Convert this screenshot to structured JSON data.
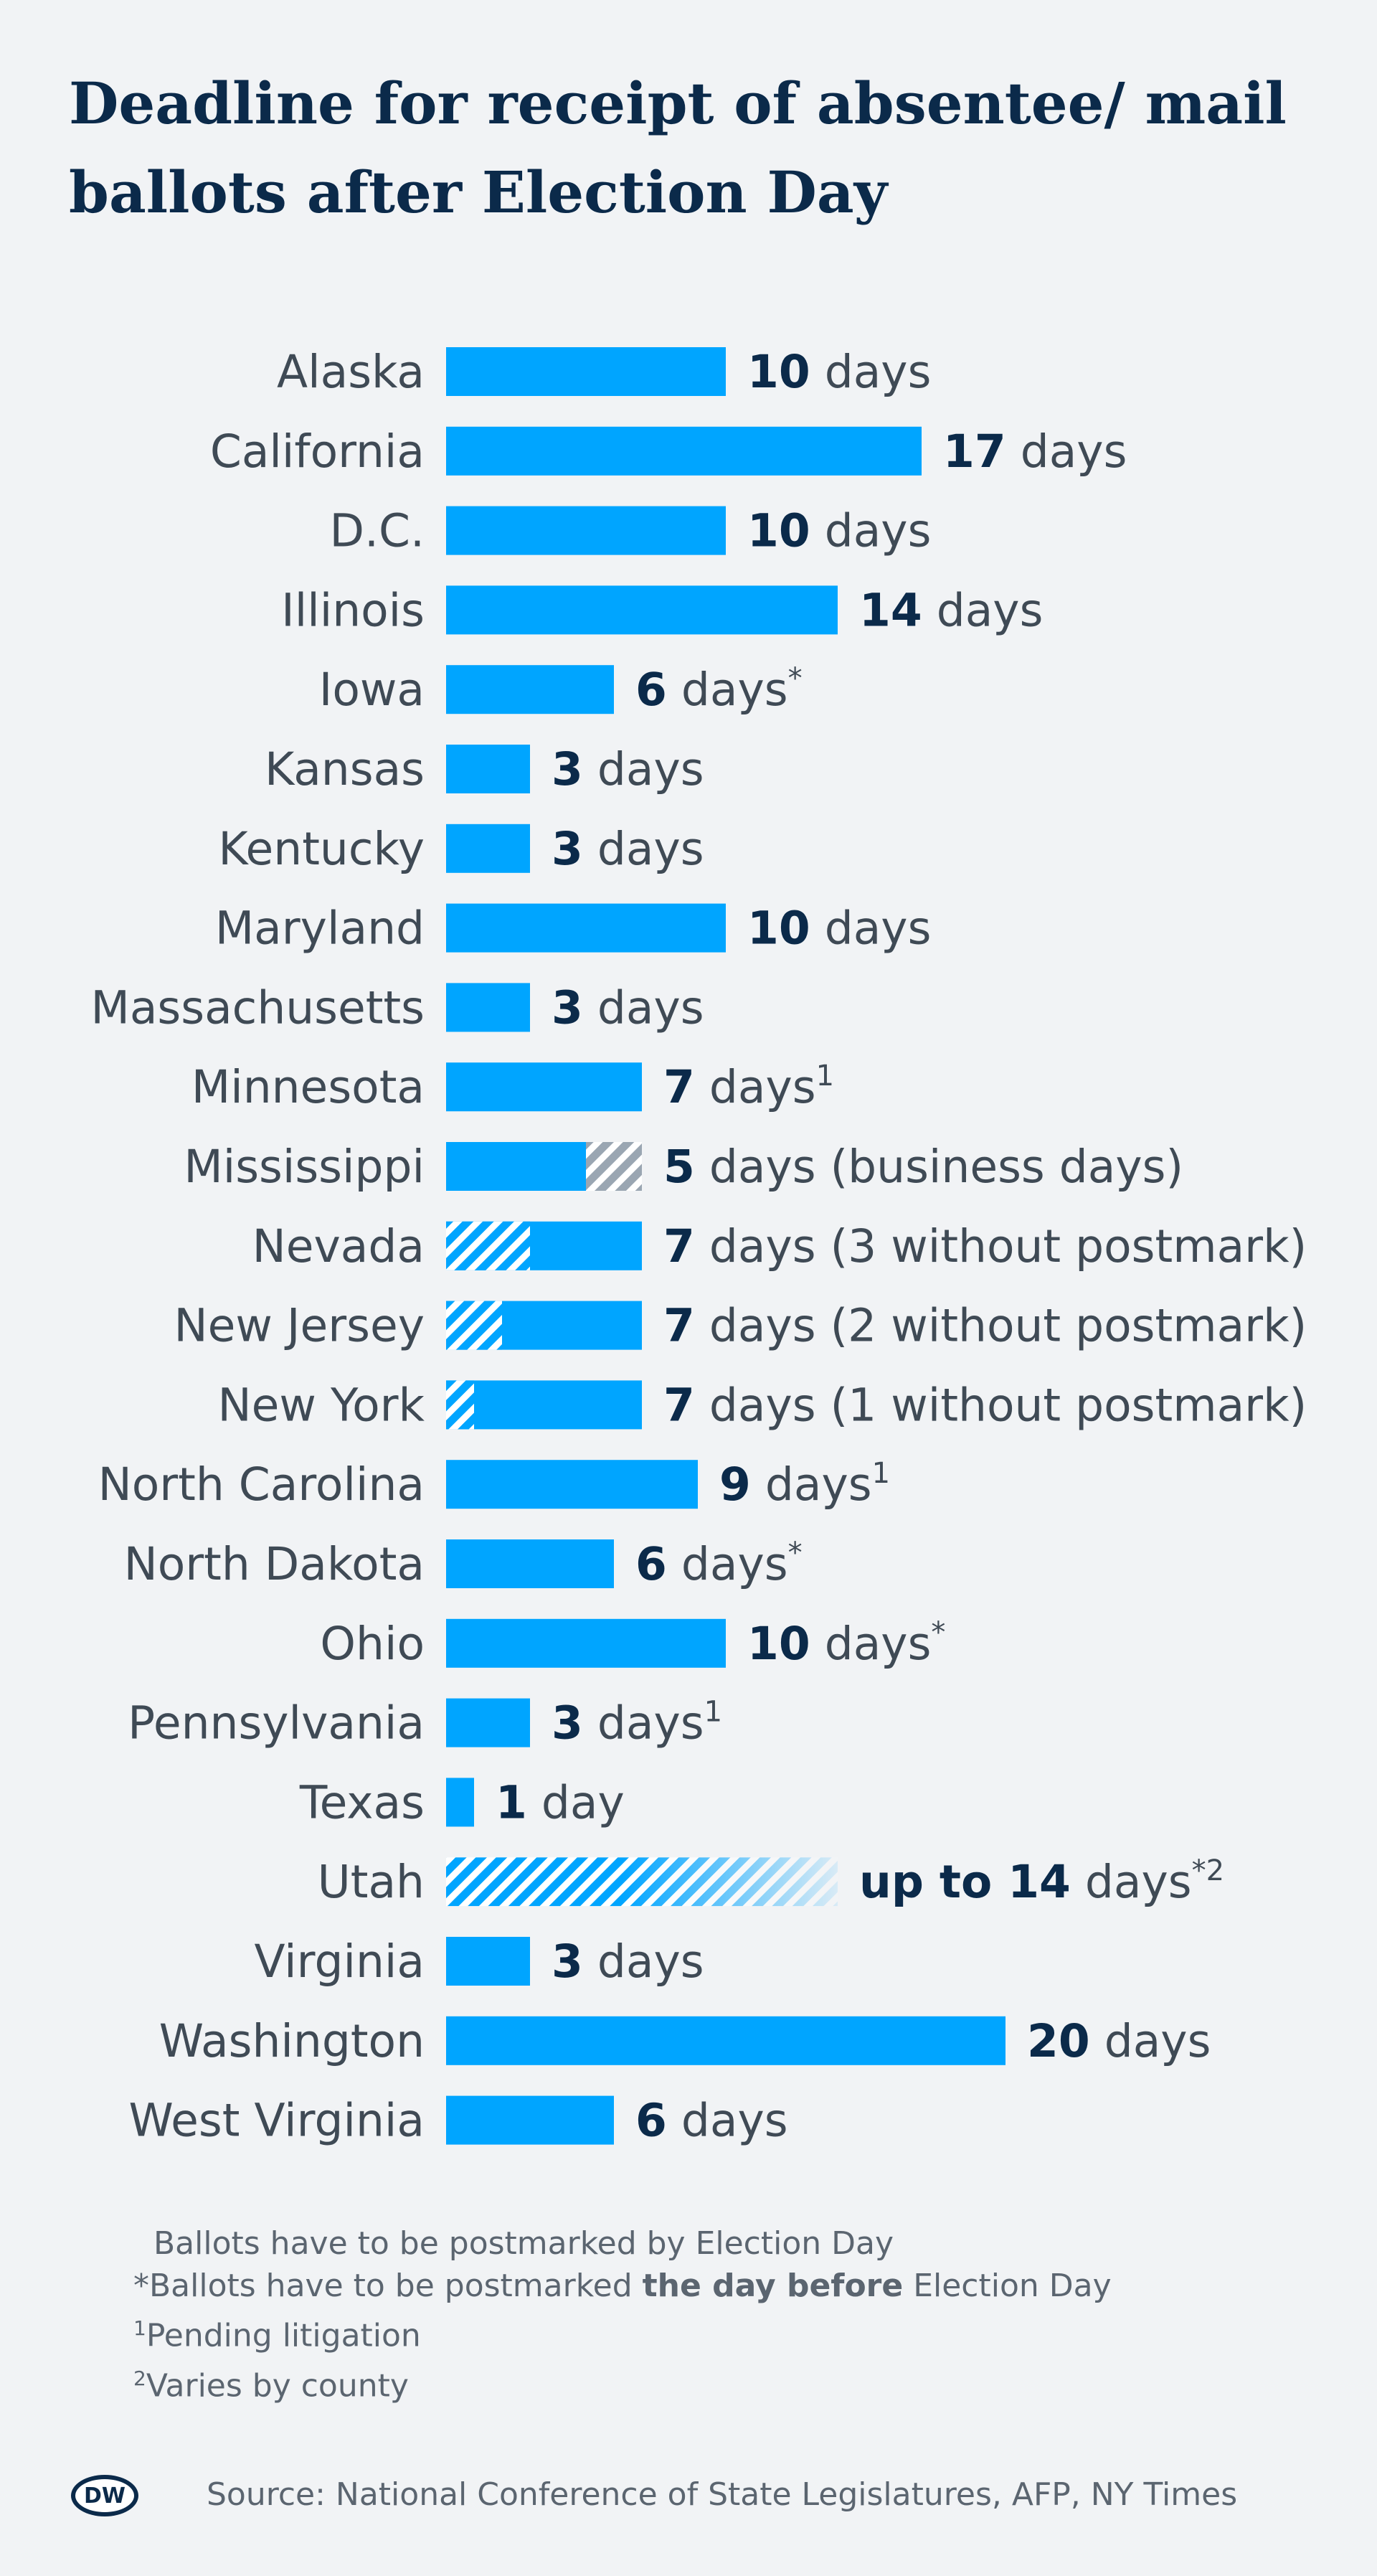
{
  "title": "Deadline for receipt of absentee/ mail ballots after Election Day",
  "colors": {
    "bar": "#00a5ff",
    "hatch_blue": "#00a5ff",
    "hatch_grey": "#9aa6b2",
    "value": "#0b2a4a",
    "label": "#3f4a55"
  },
  "chart_data": {
    "type": "bar",
    "orientation": "horizontal",
    "categories": [
      "Alaska",
      "California",
      "D.C.",
      "Illinois",
      "Iowa",
      "Kansas",
      "Kentucky",
      "Maryland",
      "Massachusetts",
      "Minnesota",
      "Mississippi",
      "Nevada",
      "New Jersey",
      "New York",
      "North Carolina",
      "North Dakota",
      "Ohio",
      "Pennsylvania",
      "Texas",
      "Utah",
      "Virginia",
      "Washington",
      "West Virginia"
    ],
    "values": [
      10,
      17,
      10,
      14,
      6,
      3,
      3,
      10,
      3,
      7,
      5,
      7,
      7,
      7,
      9,
      6,
      10,
      3,
      1,
      14,
      3,
      20,
      6
    ],
    "bars": [
      {
        "state": "Alaska",
        "days": 10,
        "prefix": "",
        "value": "10",
        "unit": " days",
        "suffix": ""
      },
      {
        "state": "California",
        "days": 17,
        "prefix": "",
        "value": "17",
        "unit": " days",
        "suffix": ""
      },
      {
        "state": "D.C.",
        "days": 10,
        "prefix": "",
        "value": "10",
        "unit": " days",
        "suffix": ""
      },
      {
        "state": "Illinois",
        "days": 14,
        "prefix": "",
        "value": "14",
        "unit": " days",
        "suffix": ""
      },
      {
        "state": "Iowa",
        "days": 6,
        "prefix": "",
        "value": "6",
        "unit": " days",
        "suffix": "*"
      },
      {
        "state": "Kansas",
        "days": 3,
        "prefix": "",
        "value": "3",
        "unit": " days",
        "suffix": ""
      },
      {
        "state": "Kentucky",
        "days": 3,
        "prefix": "",
        "value": "3",
        "unit": " days",
        "suffix": ""
      },
      {
        "state": "Maryland",
        "days": 10,
        "prefix": "",
        "value": "10",
        "unit": " days",
        "suffix": ""
      },
      {
        "state": "Massachusetts",
        "days": 3,
        "prefix": "",
        "value": "3",
        "unit": " days",
        "suffix": ""
      },
      {
        "state": "Minnesota",
        "days": 7,
        "prefix": "",
        "value": "7",
        "unit": " days",
        "suffix": "1"
      },
      {
        "state": "Mississippi",
        "days": 5,
        "prefix": "",
        "value": "5",
        "unit": " days (business days)",
        "suffix": "",
        "extra_days": 2,
        "extra_style": "grey-hatch"
      },
      {
        "state": "Nevada",
        "days": 7,
        "prefix": "",
        "value": "7",
        "unit": " days (3 without postmark)",
        "suffix": "",
        "hatched_days": 3
      },
      {
        "state": "New Jersey",
        "days": 7,
        "prefix": "",
        "value": "7",
        "unit": " days (2 without postmark)",
        "suffix": "",
        "hatched_days": 2
      },
      {
        "state": "New York",
        "days": 7,
        "prefix": "",
        "value": "7",
        "unit": " days (1 without postmark)",
        "suffix": "",
        "hatched_days": 1
      },
      {
        "state": "North Carolina",
        "days": 9,
        "prefix": "",
        "value": "9",
        "unit": " days",
        "suffix": "1"
      },
      {
        "state": "North Dakota",
        "days": 6,
        "prefix": "",
        "value": "6",
        "unit": " days",
        "suffix": "*"
      },
      {
        "state": "Ohio",
        "days": 10,
        "prefix": "",
        "value": "10",
        "unit": " days",
        "suffix": "*"
      },
      {
        "state": "Pennsylvania",
        "days": 3,
        "prefix": "",
        "value": "3",
        "unit": " days",
        "suffix": "1"
      },
      {
        "state": "Texas",
        "days": 1,
        "prefix": "",
        "value": "1",
        "unit": " day",
        "suffix": ""
      },
      {
        "state": "Utah",
        "days": 14,
        "prefix": "up to ",
        "value": "14",
        "unit": " days",
        "suffix": "*2",
        "style": "fade-hatch"
      },
      {
        "state": "Virginia",
        "days": 3,
        "prefix": "",
        "value": "3",
        "unit": " days",
        "suffix": ""
      },
      {
        "state": "Washington",
        "days": 20,
        "prefix": "",
        "value": "20",
        "unit": " days",
        "suffix": ""
      },
      {
        "state": "West Virginia",
        "days": 6,
        "prefix": "",
        "value": "6",
        "unit": " days",
        "suffix": ""
      }
    ],
    "xlim": [
      0,
      20
    ],
    "grid": false,
    "legend": "none"
  },
  "footnotes": {
    "line1": "Ballots have to be postmarked by Election Day",
    "line2_a": "*Ballots have to be postmarked ",
    "line2_b": "the day before",
    "line2_c": " Election Day",
    "line3_mark": "1",
    "line3_text": "Pending litigation",
    "line4_mark": "2",
    "line4_text": "Varies by county"
  },
  "source": "Source: National Conference of State Legislatures, AFP, NY Times",
  "logo": {
    "text": "DW",
    "icon": "dw-logo-icon"
  }
}
